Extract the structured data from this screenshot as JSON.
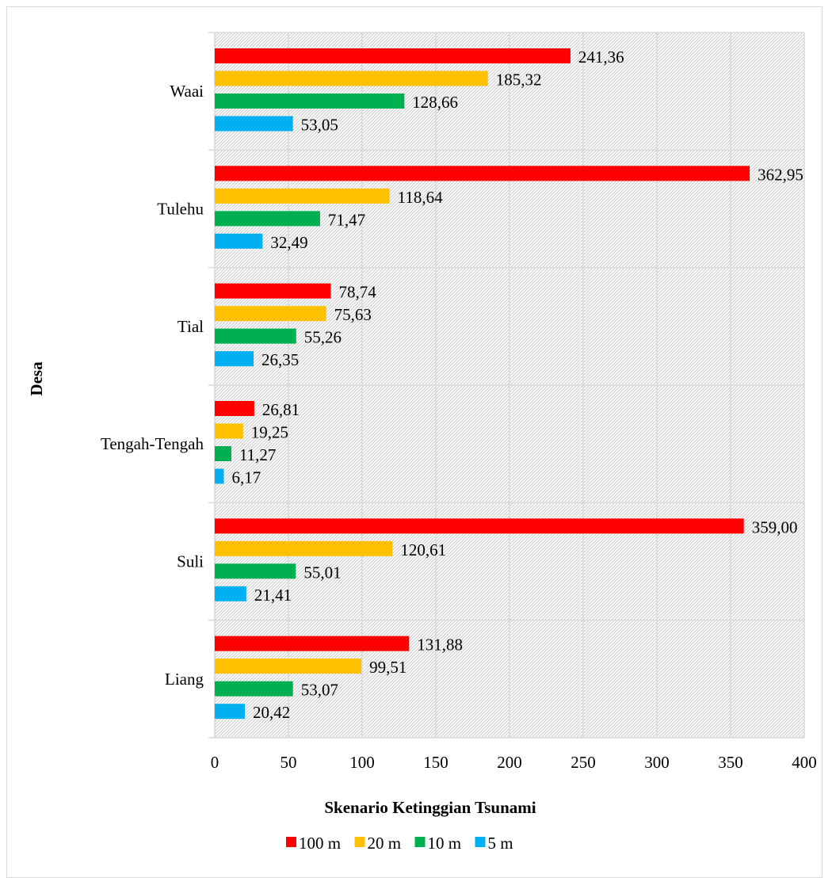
{
  "chart_data": {
    "type": "bar",
    "orientation": "horizontal",
    "xlabel": "Skenario Ketinggian Tsunami",
    "ylabel": "Desa",
    "xlim": [
      0,
      400
    ],
    "xticks": [
      "0",
      "50",
      "100",
      "150",
      "200",
      "250",
      "300",
      "350",
      "400"
    ],
    "grid": true,
    "legend_position": "bottom",
    "categories": [
      "Waai",
      "Tulehu",
      "Tial",
      "Tengah-Tengah",
      "Suli",
      "Liang"
    ],
    "series": [
      {
        "name": "100 m",
        "color": "#ff0000",
        "values": [
          241.36,
          362.95,
          78.74,
          26.81,
          359.0,
          131.88
        ],
        "labels": [
          "241,36",
          "362,95",
          "78,74",
          "26,81",
          "359,00",
          "131,88"
        ]
      },
      {
        "name": "20 m",
        "color": "#ffc000",
        "values": [
          185.32,
          118.64,
          75.63,
          19.25,
          120.61,
          99.51
        ],
        "labels": [
          "185,32",
          "118,64",
          "75,63",
          "19,25",
          "120,61",
          "99,51"
        ]
      },
      {
        "name": "10 m",
        "color": "#00b050",
        "values": [
          128.66,
          71.47,
          55.26,
          11.27,
          55.01,
          53.07
        ],
        "labels": [
          "128,66",
          "71,47",
          "55,26",
          "11,27",
          "55,01",
          "53,07"
        ]
      },
      {
        "name": "5 m",
        "color": "#00b0f0",
        "values": [
          53.05,
          32.49,
          26.35,
          6.17,
          21.41,
          20.42
        ],
        "labels": [
          "53,05",
          "32,49",
          "26,35",
          "6,17",
          "21,41",
          "20,42"
        ]
      }
    ]
  }
}
